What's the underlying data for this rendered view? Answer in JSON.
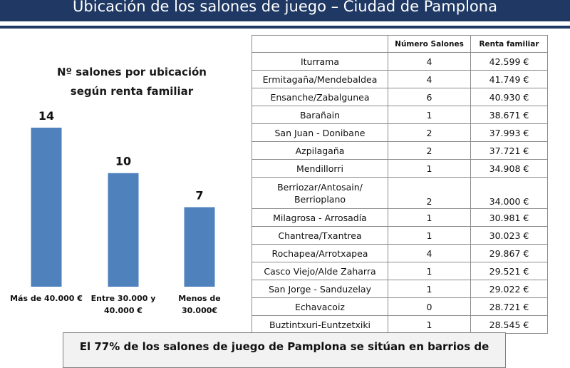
{
  "header": {
    "title": "Ubicación de los salones de juego – Ciudad de Pamplona"
  },
  "colors": {
    "header_bg": "#1f3864",
    "bar": "#4f81bd"
  },
  "chart_data": {
    "type": "bar",
    "title_line1": "Nº salones por ubicación",
    "title_line2": "según renta familiar",
    "categories": [
      [
        "Más de 40.000 €"
      ],
      [
        "Entre 30.000 y",
        "40.000 €"
      ],
      [
        "Menos de",
        "30.000€"
      ]
    ],
    "values": [
      14,
      10,
      7
    ],
    "ylim": [
      0,
      14
    ],
    "grid": false
  },
  "table": {
    "headers": [
      "",
      "Número Salones",
      "Renta familiar"
    ],
    "rows": [
      {
        "name": [
          "Iturrama"
        ],
        "salones": "4",
        "renta": "42.599 €"
      },
      {
        "name": [
          "Ermitagaña/Mendebaldea"
        ],
        "salones": "4",
        "renta": "41.749 €"
      },
      {
        "name": [
          "Ensanche/Zabalgunea"
        ],
        "salones": "6",
        "renta": "40.930 €"
      },
      {
        "name": [
          "Barañain"
        ],
        "salones": "1",
        "renta": "38.671 €"
      },
      {
        "name": [
          "San Juan - Donibane"
        ],
        "salones": "2",
        "renta": "37.993 €"
      },
      {
        "name": [
          "Azpilagaña"
        ],
        "salones": "2",
        "renta": "37.721 €"
      },
      {
        "name": [
          "Mendillorri"
        ],
        "salones": "1",
        "renta": "34.908 €"
      },
      {
        "name": [
          "Berriozar/Antosain/",
          "Berrioplano"
        ],
        "salones": "2",
        "renta": "34.000 €"
      },
      {
        "name": [
          "Milagrosa - Arrosadía"
        ],
        "salones": "1",
        "renta": "30.981 €"
      },
      {
        "name": [
          "Chantrea/Txantrea"
        ],
        "salones": "1",
        "renta": "30.023 €"
      },
      {
        "name": [
          "Rochapea/Arrotxapea"
        ],
        "salones": "4",
        "renta": "29.867 €"
      },
      {
        "name": [
          "Casco Viejo/Alde Zaharra"
        ],
        "salones": "1",
        "renta": "29.521 €"
      },
      {
        "name": [
          "San Jorge - Sanduzelay"
        ],
        "salones": "1",
        "renta": "29.022 €"
      },
      {
        "name": [
          "Echavacoiz"
        ],
        "salones": "0",
        "renta": "28.721 €"
      },
      {
        "name": [
          "Buztintxuri-Euntzetxiki"
        ],
        "salones": "1",
        "renta": "28.545 €"
      }
    ]
  },
  "conclusion": {
    "text": "El 77% de los salones de juego de Pamplona se sitúan en barrios de"
  }
}
